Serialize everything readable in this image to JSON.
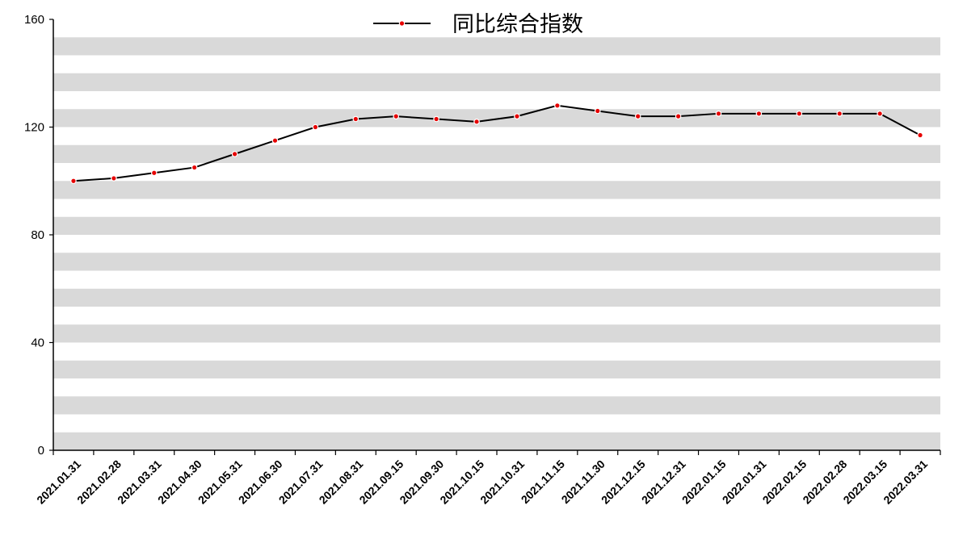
{
  "chart_data": {
    "type": "line",
    "legend_position": "top-center",
    "background_bands": true,
    "colors": {
      "line": "#000000",
      "marker": "#e60000",
      "band": "#d9d9d9"
    },
    "categories": [
      "2021.01.31",
      "2021.02.28",
      "2021.03.31",
      "2021.04.30",
      "2021.05.31",
      "2021.06.30",
      "2021.07.31",
      "2021.08.31",
      "2021.09.15",
      "2021.09.30",
      "2021.10.15",
      "2021.10.31",
      "2021.11.15",
      "2021.11.30",
      "2021.12.15",
      "2021.12.31",
      "2022.01.15",
      "2022.01.31",
      "2022.02.15",
      "2022.02.28",
      "2022.03.15",
      "2022.03.31"
    ],
    "series": [
      {
        "name": "同比综合指数",
        "values": [
          100,
          101,
          103,
          105,
          110,
          115,
          120,
          123,
          124,
          123,
          122,
          124,
          128,
          126,
          124,
          124,
          125,
          125,
          125,
          125,
          125,
          117
        ]
      }
    ],
    "ylim": [
      0,
      160
    ],
    "yticks": [
      0,
      40,
      80,
      120,
      160
    ]
  }
}
